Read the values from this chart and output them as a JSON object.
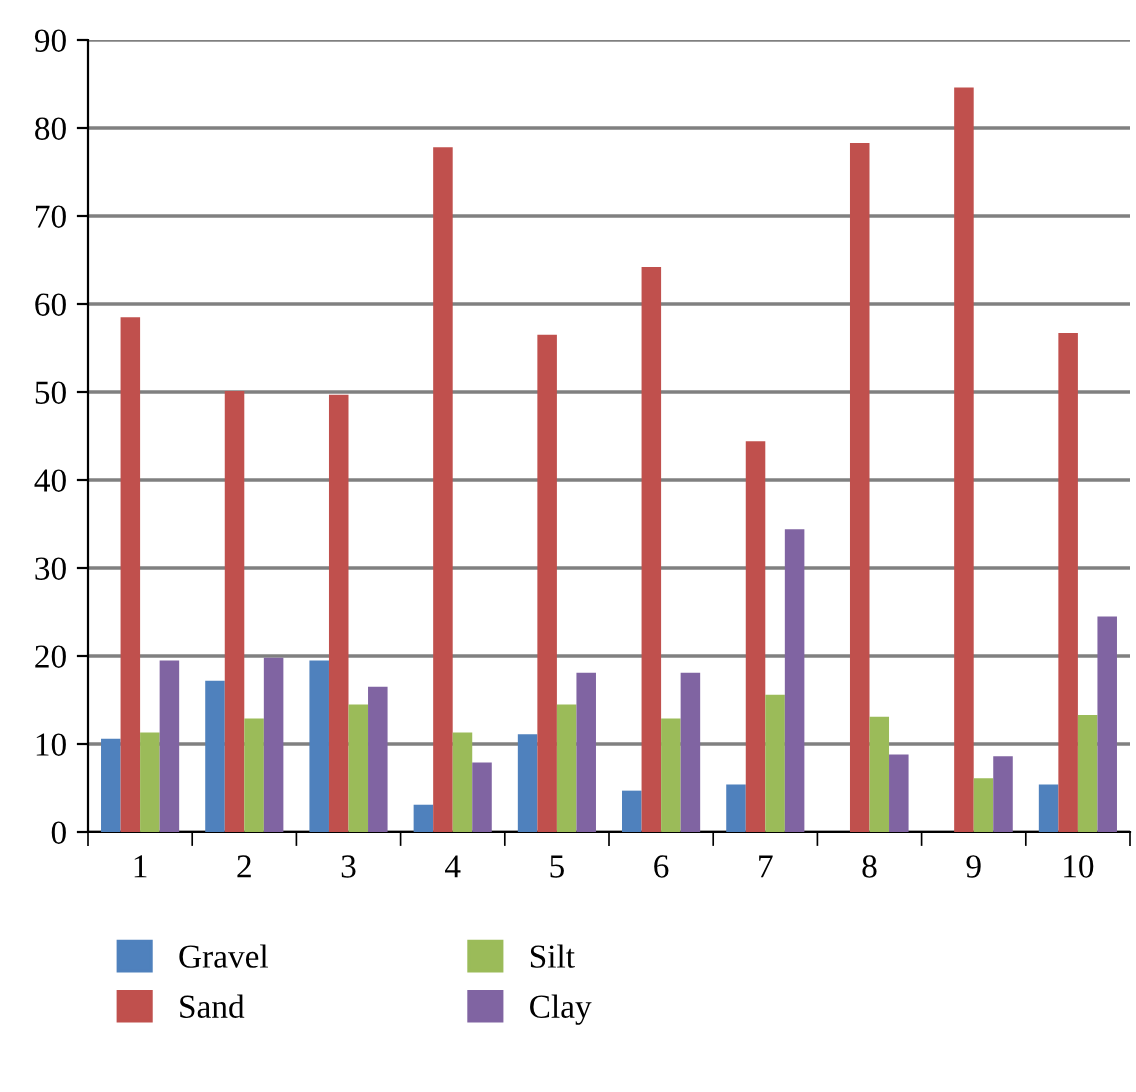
{
  "chart_data": {
    "type": "bar",
    "categories": [
      "1",
      "2",
      "3",
      "4",
      "5",
      "6",
      "7",
      "8",
      "9",
      "10"
    ],
    "series": [
      {
        "name": "Gravel",
        "color": "#4f81bd",
        "values": [
          10.6,
          17.2,
          19.5,
          3.1,
          11.1,
          4.7,
          5.4,
          0,
          0,
          5.4
        ]
      },
      {
        "name": "Sand",
        "color": "#c0504d",
        "values": [
          58.5,
          50.1,
          49.7,
          77.8,
          56.5,
          64.2,
          44.4,
          78.3,
          84.6,
          56.7
        ]
      },
      {
        "name": "Silt",
        "color": "#9bbb59",
        "values": [
          11.3,
          12.9,
          14.5,
          11.3,
          14.5,
          12.9,
          15.6,
          13.1,
          6.1,
          13.3
        ]
      },
      {
        "name": "Clay",
        "color": "#8064a2",
        "values": [
          19.5,
          19.8,
          16.5,
          7.9,
          18.1,
          18.1,
          34.4,
          8.8,
          8.6,
          24.5
        ]
      }
    ],
    "ylim": [
      0,
      90
    ],
    "yticks": [
      0,
      10,
      20,
      30,
      40,
      50,
      60,
      70,
      80,
      90
    ],
    "grid": "y",
    "legend": "bottom"
  }
}
